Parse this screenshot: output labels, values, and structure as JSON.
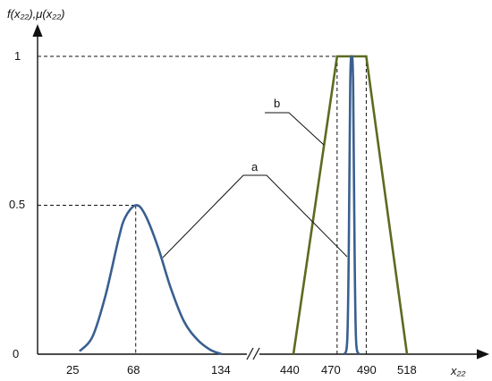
{
  "chart_data": {
    "type": "line",
    "ylabel": "f(x₂₂),μ(x₂₂)",
    "xlabel": "x₂₂",
    "x_ticks": [
      "25",
      "68",
      "134",
      "440",
      "470",
      "490",
      "518"
    ],
    "y_ticks": [
      "0",
      "0.5",
      "1"
    ],
    "ylim": [
      0,
      1
    ],
    "x_segments": [
      [
        10,
        140
      ],
      [
        430,
        530
      ]
    ],
    "axis_break": true,
    "series": [
      {
        "id": "a",
        "label": "a",
        "color": "#3a5f8f",
        "kind": "normal_density",
        "peak_x": 68,
        "peak_y": 0.5,
        "x": [
          25,
          35,
          45,
          55,
          60,
          68,
          75,
          85,
          95,
          105,
          115,
          125,
          134
        ],
        "y": [
          0.01,
          0.06,
          0.2,
          0.39,
          0.46,
          0.5,
          0.47,
          0.36,
          0.22,
          0.11,
          0.05,
          0.015,
          0.0
        ]
      },
      {
        "id": "b",
        "label": "b",
        "color": "#5b6b20",
        "kind": "trapezoid",
        "x": [
          440,
          470,
          490,
          518
        ],
        "y": [
          0,
          1,
          1,
          0
        ]
      },
      {
        "id": "a2",
        "label": "a",
        "color": "#3a5f8f",
        "kind": "narrow_density",
        "x": [
          475,
          477,
          478,
          479,
          480,
          481,
          482,
          483,
          485
        ],
        "y": [
          0.0,
          0.05,
          0.35,
          0.9,
          1.0,
          0.9,
          0.35,
          0.05,
          0.0
        ]
      }
    ],
    "annotations": [
      {
        "text": "a",
        "targets": [
          "a",
          "a2"
        ]
      },
      {
        "text": "b",
        "targets": [
          "b"
        ]
      }
    ],
    "guides": [
      {
        "x": 68,
        "y": 0.5
      },
      {
        "x": 470,
        "y": 1
      },
      {
        "x": 490,
        "y": 1
      }
    ],
    "grid": false
  }
}
